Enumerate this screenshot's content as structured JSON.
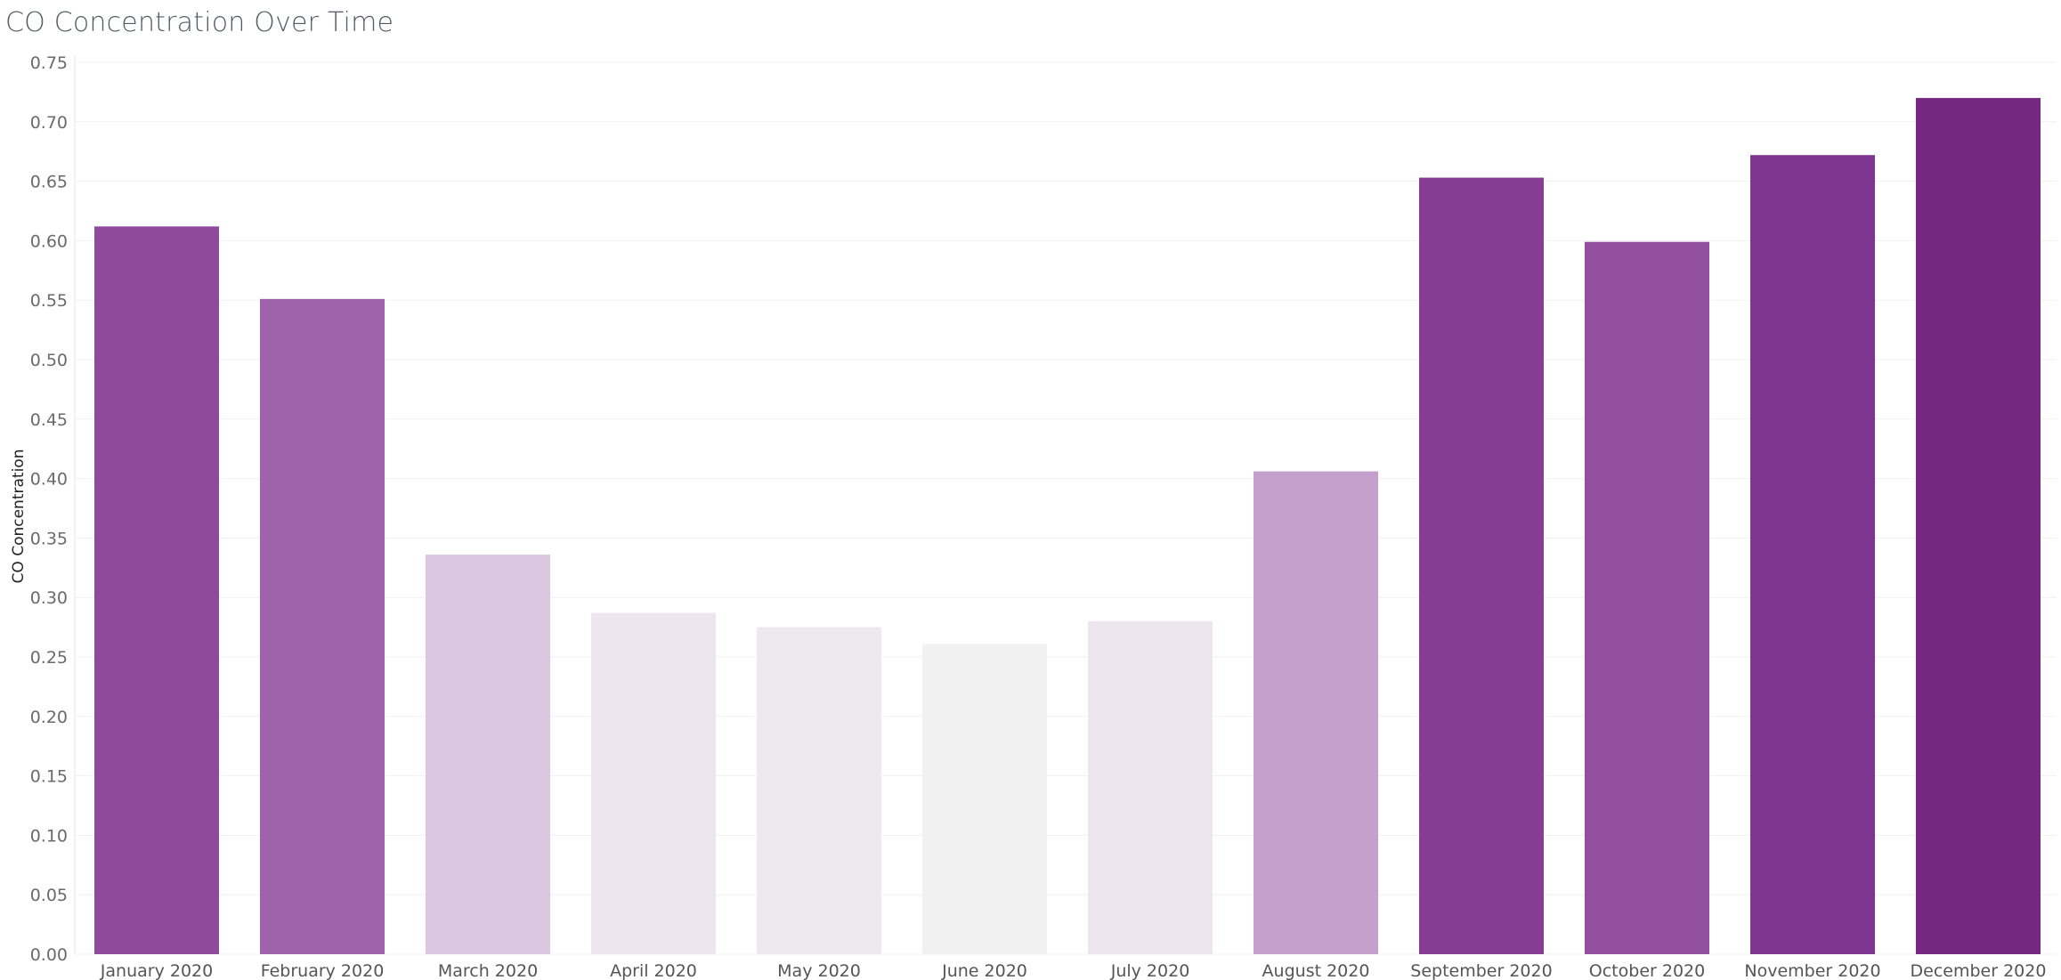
{
  "chart_data": {
    "type": "bar",
    "title": "CO Concentration Over Time",
    "xlabel": "",
    "ylabel": "CO Concentration",
    "ylim": [
      0,
      0.75
    ],
    "yticks": [
      "0.00",
      "0.05",
      "0.10",
      "0.15",
      "0.20",
      "0.25",
      "0.30",
      "0.35",
      "0.40",
      "0.45",
      "0.50",
      "0.55",
      "0.60",
      "0.65",
      "0.70",
      "0.75"
    ],
    "grid": true,
    "legend": "none",
    "categories": [
      "January 2020",
      "February 2020",
      "March 2020",
      "April 2020",
      "May 2020",
      "June 2020",
      "July 2020",
      "August 2020",
      "September 2020",
      "October 2020",
      "November 2020",
      "December 2020"
    ],
    "values": [
      0.612,
      0.551,
      0.336,
      0.287,
      0.275,
      0.261,
      0.28,
      0.406,
      0.653,
      0.599,
      0.672,
      0.72
    ],
    "colors": [
      "#8f4b9b",
      "#a062ab",
      "#dbc8e0",
      "#ede6ee",
      "#eee8ef",
      "#f1f1f2",
      "#ede6ee",
      "#c6a0cc",
      "#853c92",
      "#924f9e",
      "#7f3690",
      "#75287f"
    ]
  }
}
